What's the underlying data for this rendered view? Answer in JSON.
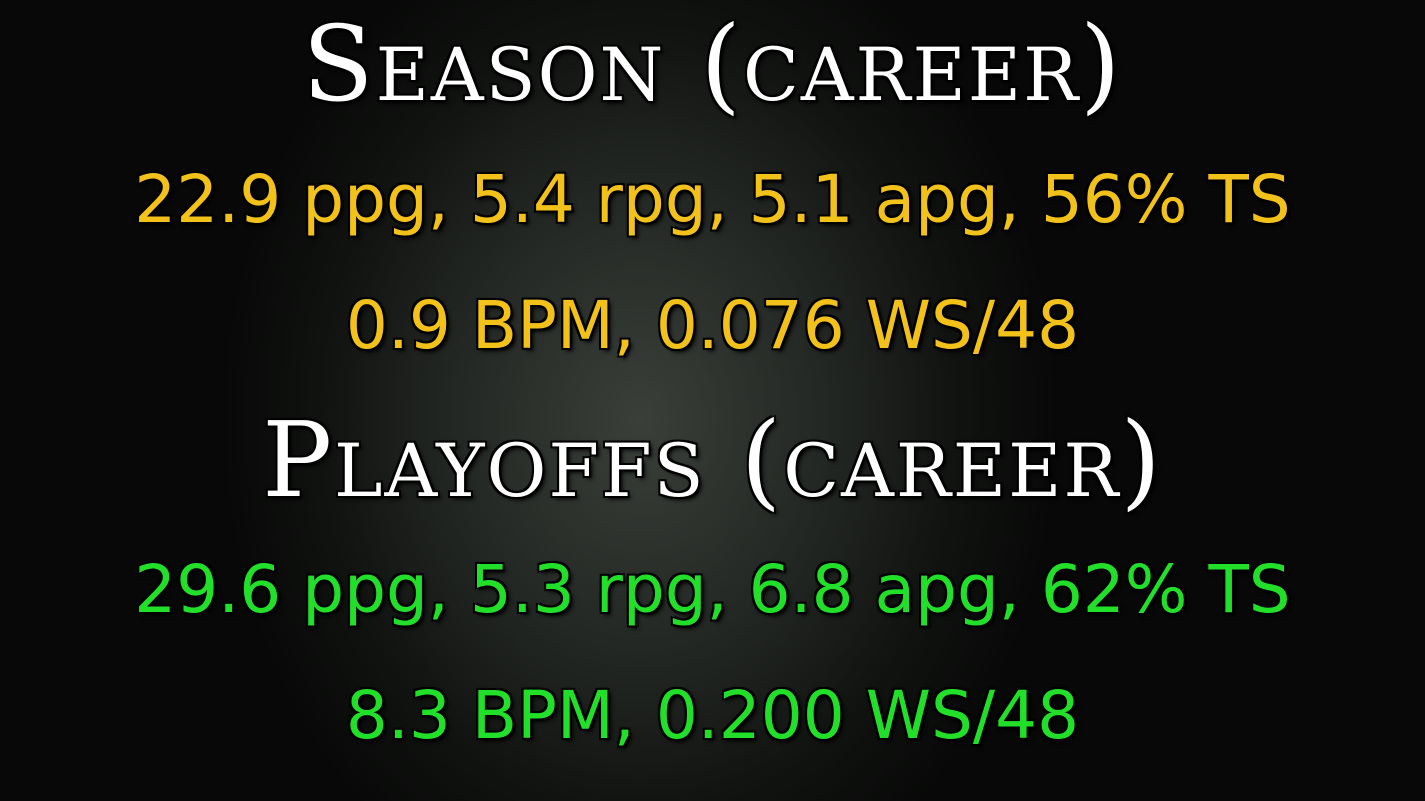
{
  "season": {
    "title": "Season (career)",
    "line1": "22.9 ppg, 5.4 rpg, 5.1 apg, 56% TS",
    "line2": "0.9 BPM, 0.076 WS/48",
    "color": "#f2c21b"
  },
  "playoffs": {
    "title": "Playoffs (career)",
    "line1": "29.6 ppg, 5.3 rpg, 6.8 apg, 62% TS",
    "line2": "8.3 BPM, 0.200 WS/48",
    "color": "#22e02a"
  },
  "title_color": "#ffffff"
}
